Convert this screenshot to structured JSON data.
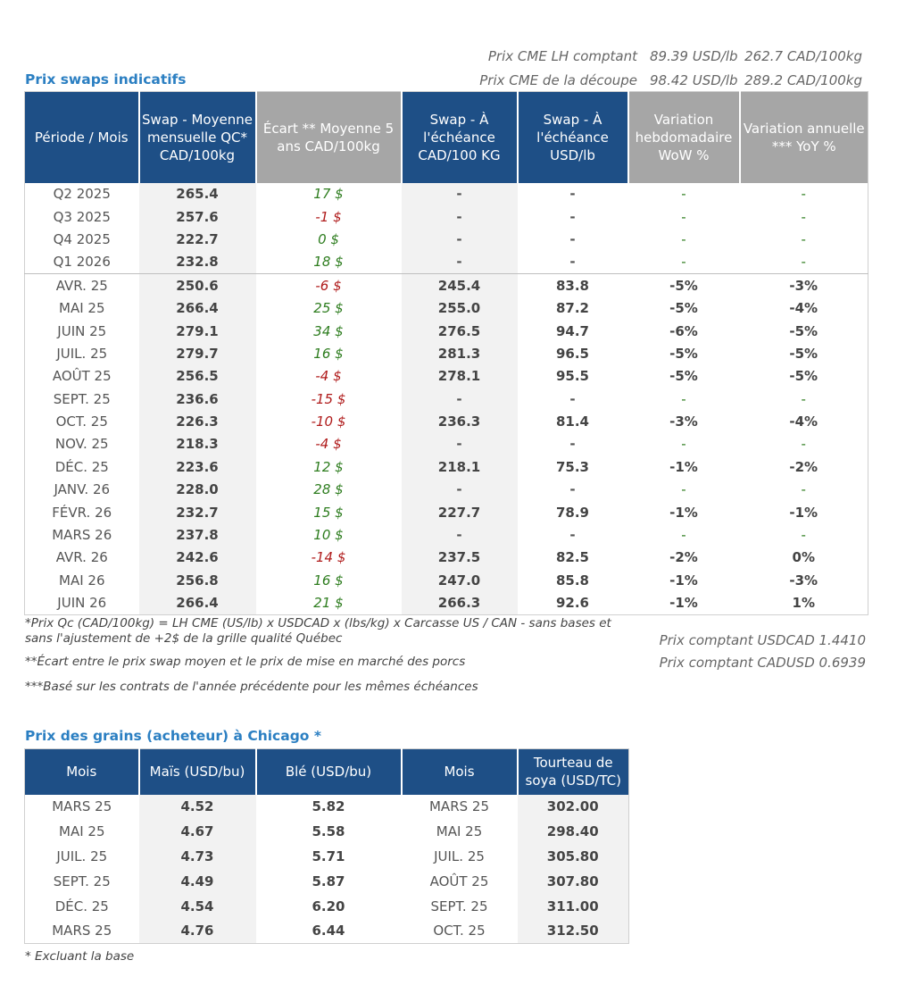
{
  "cme": [
    {
      "label": "Prix CME LH comptant",
      "usd": "89.39 USD/lb",
      "cad": "262.7 CAD/100kg"
    },
    {
      "label": "Prix CME de la découpe",
      "usd": "98.42 USD/lb",
      "cad": "289.2 CAD/100kg"
    }
  ],
  "swaps": {
    "title": "Prix swaps indicatifs",
    "headers": [
      "Période / Mois",
      "Swap - Moyenne mensuelle QC* CAD/100kg",
      "Écart ** Moyenne 5 ans CAD/100kg",
      "Swap - À l'échéance CAD/100 KG",
      "Swap - À l'échéance USD/lb",
      "Variation hebdomadaire WoW %",
      "Variation annuelle *** YoY %"
    ],
    "rows": [
      [
        "Q2 2025",
        "265.4",
        "17 $",
        "-",
        "-",
        "-",
        "-"
      ],
      [
        "Q3 2025",
        "257.6",
        "-1 $",
        "-",
        "-",
        "-",
        "-"
      ],
      [
        "Q4 2025",
        "222.7",
        "0 $",
        "-",
        "-",
        "-",
        "-"
      ],
      [
        "Q1 2026",
        "232.8",
        "18 $",
        "-",
        "-",
        "-",
        "-"
      ],
      [
        "AVR. 25",
        "250.6",
        "-6 $",
        "245.4",
        "83.8",
        "-5%",
        "-3%"
      ],
      [
        "MAI 25",
        "266.4",
        "25 $",
        "255.0",
        "87.2",
        "-5%",
        "-4%"
      ],
      [
        "JUIN 25",
        "279.1",
        "34 $",
        "276.5",
        "94.7",
        "-6%",
        "-5%"
      ],
      [
        "JUIL. 25",
        "279.7",
        "16 $",
        "281.3",
        "96.5",
        "-5%",
        "-5%"
      ],
      [
        "AOÛT 25",
        "256.5",
        "-4 $",
        "278.1",
        "95.5",
        "-5%",
        "-5%"
      ],
      [
        "SEPT. 25",
        "236.6",
        "-15 $",
        "-",
        "-",
        "-",
        "-"
      ],
      [
        "OCT. 25",
        "226.3",
        "-10 $",
        "236.3",
        "81.4",
        "-3%",
        "-4%"
      ],
      [
        "NOV. 25",
        "218.3",
        "-4 $",
        "-",
        "-",
        "-",
        "-"
      ],
      [
        "DÉC. 25",
        "223.6",
        "12 $",
        "218.1",
        "75.3",
        "-1%",
        "-2%"
      ],
      [
        "JANV. 26",
        "228.0",
        "28 $",
        "-",
        "-",
        "-",
        "-"
      ],
      [
        "FÉVR. 26",
        "232.7",
        "15 $",
        "227.7",
        "78.9",
        "-1%",
        "-1%"
      ],
      [
        "MARS 26",
        "237.8",
        "10 $",
        "-",
        "-",
        "-",
        "-"
      ],
      [
        "AVR. 26",
        "242.6",
        "-14 $",
        "237.5",
        "82.5",
        "-2%",
        "0%"
      ],
      [
        "MAI 26",
        "256.8",
        "16 $",
        "247.0",
        "85.8",
        "-1%",
        "-3%"
      ],
      [
        "JUIN 26",
        "266.4",
        "21 $",
        "266.3",
        "92.6",
        "-1%",
        "1%"
      ]
    ]
  },
  "notes": {
    "n1": "*Prix Qc (CAD/100kg) = LH CME (US/lb) x USDCAD x (lbs/kg) x Carcasse US / CAN - sans bases et sans l'ajustement de +2$ de la grille qualité Québec",
    "n2": "**Écart entre le prix swap moyen et le prix de mise en marché des porcs",
    "n3": "***Basé sur les contrats de l'année précédente pour les mêmes échéances",
    "fx1": "Prix comptant USDCAD 1.4410",
    "fx2": "Prix comptant CADUSD 0.6939"
  },
  "grains": {
    "title": "Prix des grains (acheteur) à Chicago *",
    "headers": [
      "Mois",
      "Maïs (USD/bu)",
      "Blé (USD/bu)",
      "Mois",
      "Tourteau de soya (USD/TC)"
    ],
    "rows": [
      [
        "MARS 25",
        "4.52",
        "5.82",
        "MARS 25",
        "302.00"
      ],
      [
        "MAI 25",
        "4.67",
        "5.58",
        "MAI 25",
        "298.40"
      ],
      [
        "JUIL. 25",
        "4.73",
        "5.71",
        "JUIL. 25",
        "305.80"
      ],
      [
        "SEPT. 25",
        "4.49",
        "5.87",
        "AOÛT 25",
        "307.80"
      ],
      [
        "DÉC. 25",
        "4.54",
        "6.20",
        "SEPT. 25",
        "311.00"
      ],
      [
        "MARS 25",
        "4.76",
        "6.44",
        "OCT. 25",
        "312.50"
      ]
    ],
    "footnote": "* Excluant la base"
  },
  "colors": {
    "header_blue": "#1e4f86",
    "header_gray": "#a6a6a6",
    "title_blue": "#2b7fc2",
    "positive": "#2e7d1f",
    "negative": "#b01c1c"
  }
}
